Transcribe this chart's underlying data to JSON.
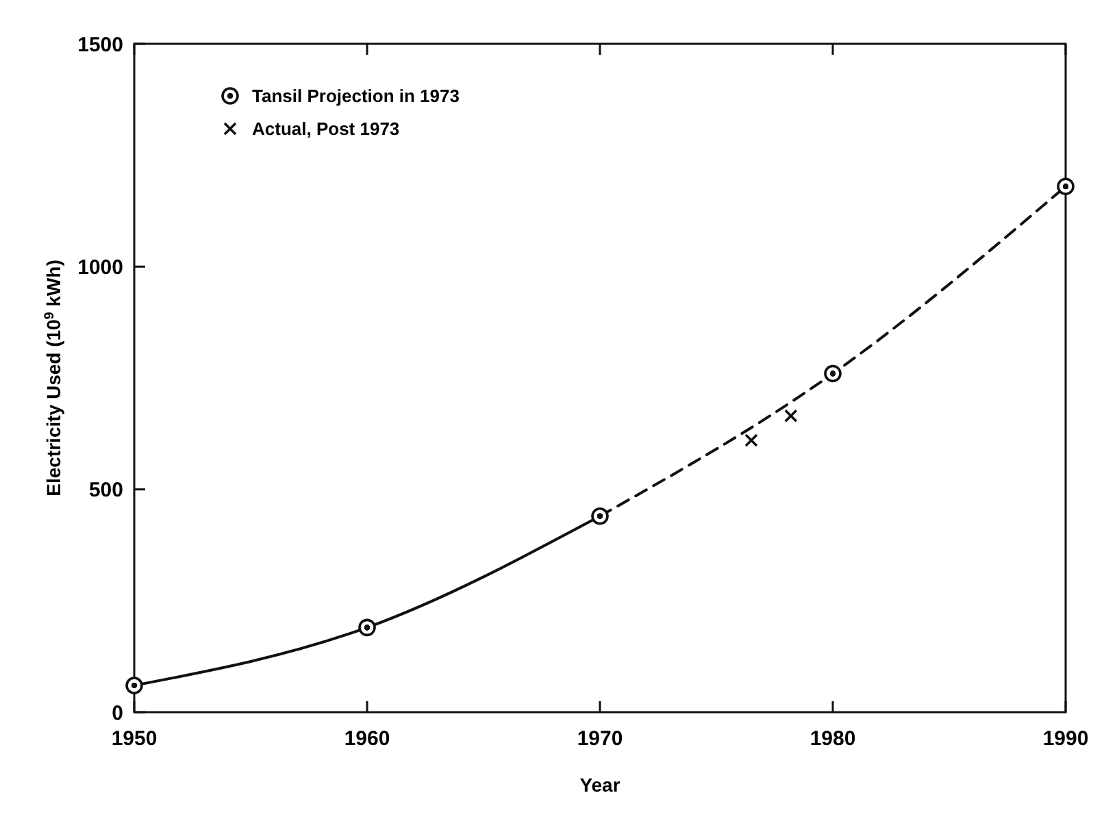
{
  "chart_data": {
    "type": "scatter",
    "xlabel": "Year",
    "ylabel": "Electricity Used (10$^{9}$ kWh)",
    "xlim": [
      1950,
      1990
    ],
    "ylim": [
      0,
      1500
    ],
    "xticks": [
      1950,
      1960,
      1970,
      1980,
      1990
    ],
    "yticks": [
      0,
      500,
      1000,
      1500
    ],
    "grid": false,
    "legend": "top left",
    "series": [
      {
        "type": "line",
        "x": [
          1950,
          1960,
          1970
        ],
        "values": [
          60,
          190,
          440
        ],
        "color": "#111111",
        "line_style": "solid"
      },
      {
        "type": "line",
        "x": [
          1970,
          1980,
          1990
        ],
        "values": [
          440,
          760,
          1180
        ],
        "color": "#111111",
        "line_style": "dashed"
      },
      {
        "name": "Tansil Projection in 1973",
        "x": [
          1950,
          1960,
          1970,
          1980,
          1990
        ],
        "values": [
          60,
          190,
          440,
          760,
          1180
        ],
        "color": "#111111",
        "marker": "circle"
      },
      {
        "name": "Actual, Post 1973",
        "x": [
          1976.5,
          1978.2
        ],
        "values": [
          610,
          665
        ],
        "color": "#111111",
        "marker": "cross"
      }
    ]
  }
}
